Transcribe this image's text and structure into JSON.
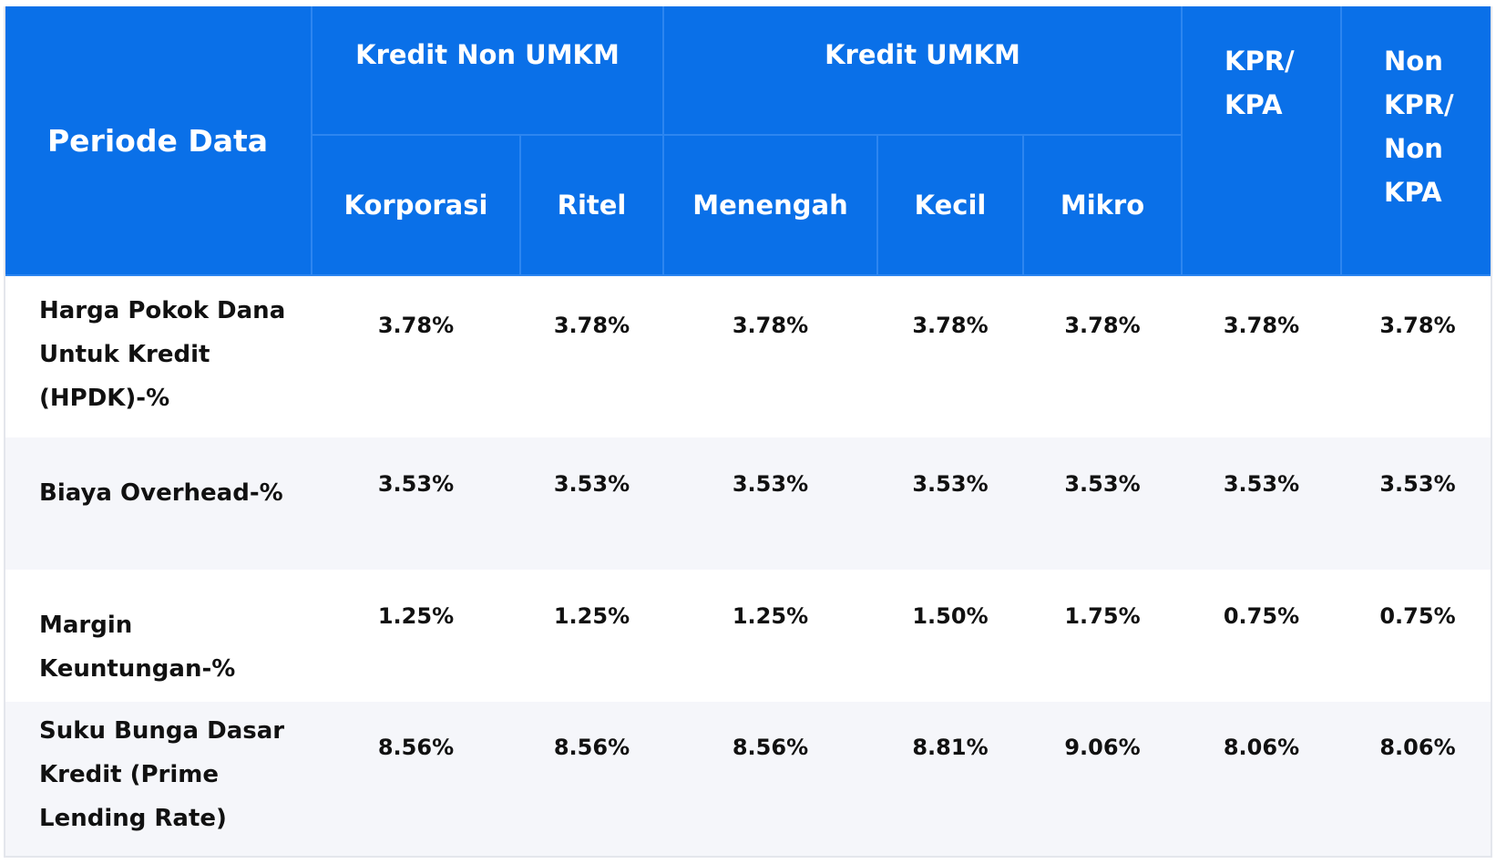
{
  "header": {
    "period": "Periode Data",
    "groups": [
      {
        "label": "Kredit Non UMKM",
        "sub": [
          "Korporasi",
          "Ritel"
        ]
      },
      {
        "label": "Kredit UMKM",
        "sub": [
          "Menengah",
          "Kecil",
          "Mikro"
        ]
      },
      {
        "label": "KPR/ KPA"
      },
      {
        "label": "Non KPR/ Non KPA"
      }
    ]
  },
  "table": {
    "rows": [
      {
        "label": "Harga Pokok Dana Untuk Kredit (HPDK)-%",
        "values": [
          "3.78%",
          "3.78%",
          "3.78%",
          "3.78%",
          "3.78%",
          "3.78%",
          "3.78%"
        ]
      },
      {
        "label": "Biaya Overhead-%",
        "values": [
          "3.53%",
          "3.53%",
          "3.53%",
          "3.53%",
          "3.53%",
          "3.53%",
          "3.53%"
        ]
      },
      {
        "label": "Margin Keuntungan-%",
        "values": [
          "1.25%",
          "1.25%",
          "1.25%",
          "1.50%",
          "1.75%",
          "0.75%",
          "0.75%"
        ]
      },
      {
        "label": "Suku Bunga Dasar Kredit (Prime Lending Rate)",
        "values": [
          "8.56%",
          "8.56%",
          "8.56%",
          "8.81%",
          "9.06%",
          "8.06%",
          "8.06%"
        ]
      }
    ]
  }
}
